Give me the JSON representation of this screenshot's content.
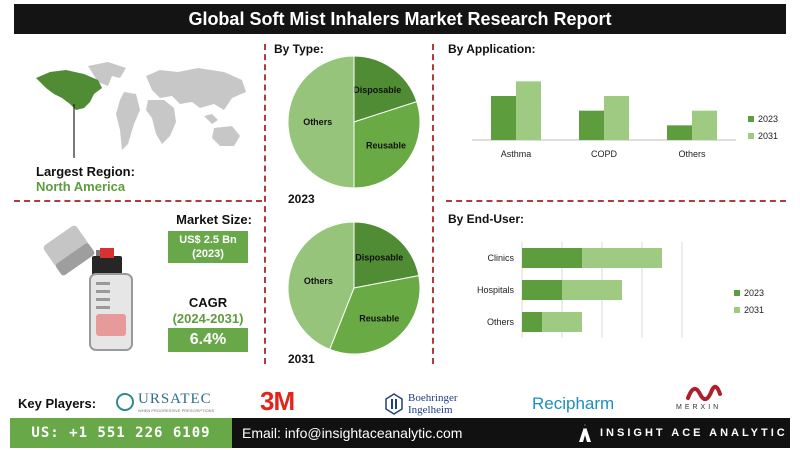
{
  "title": "Global Soft Mist Inhalers Market Research Report",
  "region": {
    "label": "Largest Region:",
    "value": "North America"
  },
  "market_size": {
    "label": "Market Size:",
    "value": "US$ 2.5 Bn",
    "year": "(2023)"
  },
  "cagr": {
    "label": "CAGR",
    "period": "(2024-2031)",
    "value": "6.4%"
  },
  "key_players_label": "Key Players:",
  "key_players": {
    "ursatec": "URSATEC",
    "ursatec_tagline": "WHEN PROGRESSIVE PRESCRIPTIONS",
    "three_m": "3M",
    "boehringer_1": "Boehringer",
    "boehringer_2": "Ingelheim",
    "recipharm": "Recipharm",
    "merxin": "MERXIN"
  },
  "footer": {
    "phone": "US: +1 551 226 6109",
    "email": "Email: info@insightaceanalytic.com",
    "brand": "INSIGHT ACE ANALYTIC"
  },
  "colors": {
    "dark_green": "#5d9d3d",
    "light_green": "#9fca82",
    "mid_green": "#85b866",
    "accent_red": "#b23a3a"
  },
  "chart_data": [
    {
      "type": "pie",
      "title": "By Type:",
      "caption": "2023",
      "slices": [
        {
          "label": "Disposable",
          "value": 20,
          "color": "#4f8c33"
        },
        {
          "label": "Reusable",
          "value": 30,
          "color": "#6aaa45"
        },
        {
          "label": "Others",
          "value": 50,
          "color": "#96c47a"
        }
      ]
    },
    {
      "type": "pie",
      "caption": "2031",
      "slices": [
        {
          "label": "Disposable",
          "value": 22,
          "color": "#4f8c33"
        },
        {
          "label": "Reusable",
          "value": 34,
          "color": "#6aaa45"
        },
        {
          "label": "Others",
          "value": 44,
          "color": "#96c47a"
        }
      ]
    },
    {
      "type": "bar",
      "orientation": "vertical",
      "title": "By Application:",
      "categories": [
        "Asthma",
        "COPD",
        "Others"
      ],
      "series": [
        {
          "name": "2023",
          "values": [
            3,
            2,
            1
          ],
          "color": "#5d9d3d"
        },
        {
          "name": "2031",
          "values": [
            4,
            3,
            2
          ],
          "color": "#9fca82"
        }
      ],
      "ylim": [
        0,
        4.5
      ],
      "legend": "right",
      "grid": false
    },
    {
      "type": "bar",
      "orientation": "horizontal",
      "title": "By End-User:",
      "categories": [
        "Clinics",
        "Hospitals",
        "Others"
      ],
      "series": [
        {
          "name": "2023",
          "values": [
            3,
            2,
            1
          ],
          "color": "#5d9d3d"
        },
        {
          "name": "2031",
          "values": [
            4,
            3,
            2
          ],
          "color": "#9fca82"
        }
      ],
      "xlim": [
        0,
        8
      ],
      "stacked": true,
      "legend": "right",
      "grid": true
    }
  ]
}
